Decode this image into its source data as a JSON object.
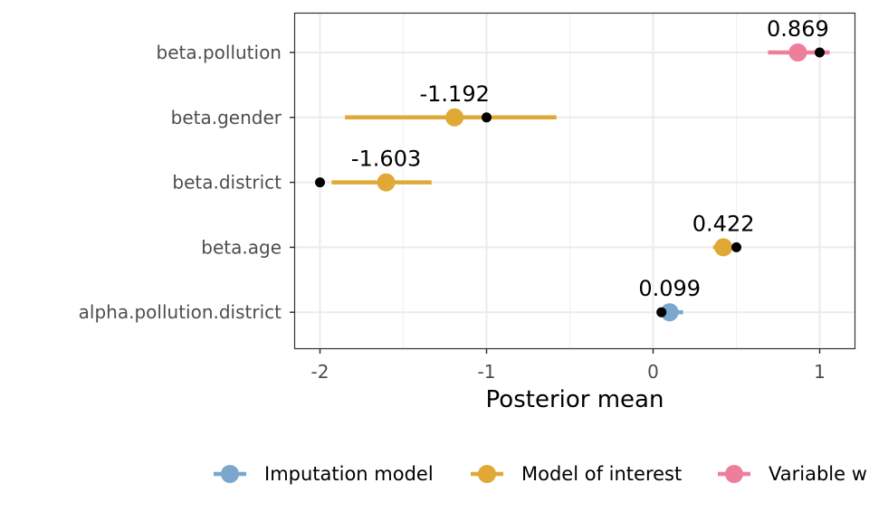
{
  "chart_data": {
    "type": "scatter",
    "title": "",
    "xlabel": "Posterior mean",
    "ylabel": "",
    "xlim": [
      -2.2,
      1.22
    ],
    "x_ticks": [
      {
        "value": -2,
        "label": "-2"
      },
      {
        "value": -1,
        "label": "-1"
      },
      {
        "value": 0,
        "label": "0"
      },
      {
        "value": 1,
        "label": "1"
      }
    ],
    "grid": true,
    "legend_position": "bottom",
    "categories": [
      "beta.pollution",
      "beta.gender",
      "beta.district",
      "beta.age",
      "alpha.pollution.district"
    ],
    "series": [
      {
        "name": "Imputation model",
        "color": "#7ba7cc"
      },
      {
        "name": "Model of interest",
        "color": "#e0a935"
      },
      {
        "name": "Variable w",
        "color": "#ee7f9c"
      }
    ],
    "estimates": [
      {
        "category": "beta.pollution",
        "series": "Variable w",
        "mean": 0.869,
        "lower": 0.69,
        "upper": 1.06,
        "true_value": 1.0,
        "label": "0.869"
      },
      {
        "category": "beta.gender",
        "series": "Model of interest",
        "mean": -1.192,
        "lower": -1.85,
        "upper": -0.58,
        "true_value": -1.0,
        "label": "-1.192"
      },
      {
        "category": "beta.district",
        "series": "Model of interest",
        "mean": -1.603,
        "lower": -1.93,
        "upper": -1.33,
        "true_value": -2.0,
        "label": "-1.603"
      },
      {
        "category": "beta.age",
        "series": "Model of interest",
        "mean": 0.422,
        "lower": 0.36,
        "upper": 0.48,
        "true_value": 0.5,
        "label": "0.422"
      },
      {
        "category": "alpha.pollution.district",
        "series": "Imputation model",
        "mean": 0.099,
        "lower": 0.03,
        "upper": 0.18,
        "true_value": 0.05,
        "label": "0.099"
      }
    ]
  }
}
